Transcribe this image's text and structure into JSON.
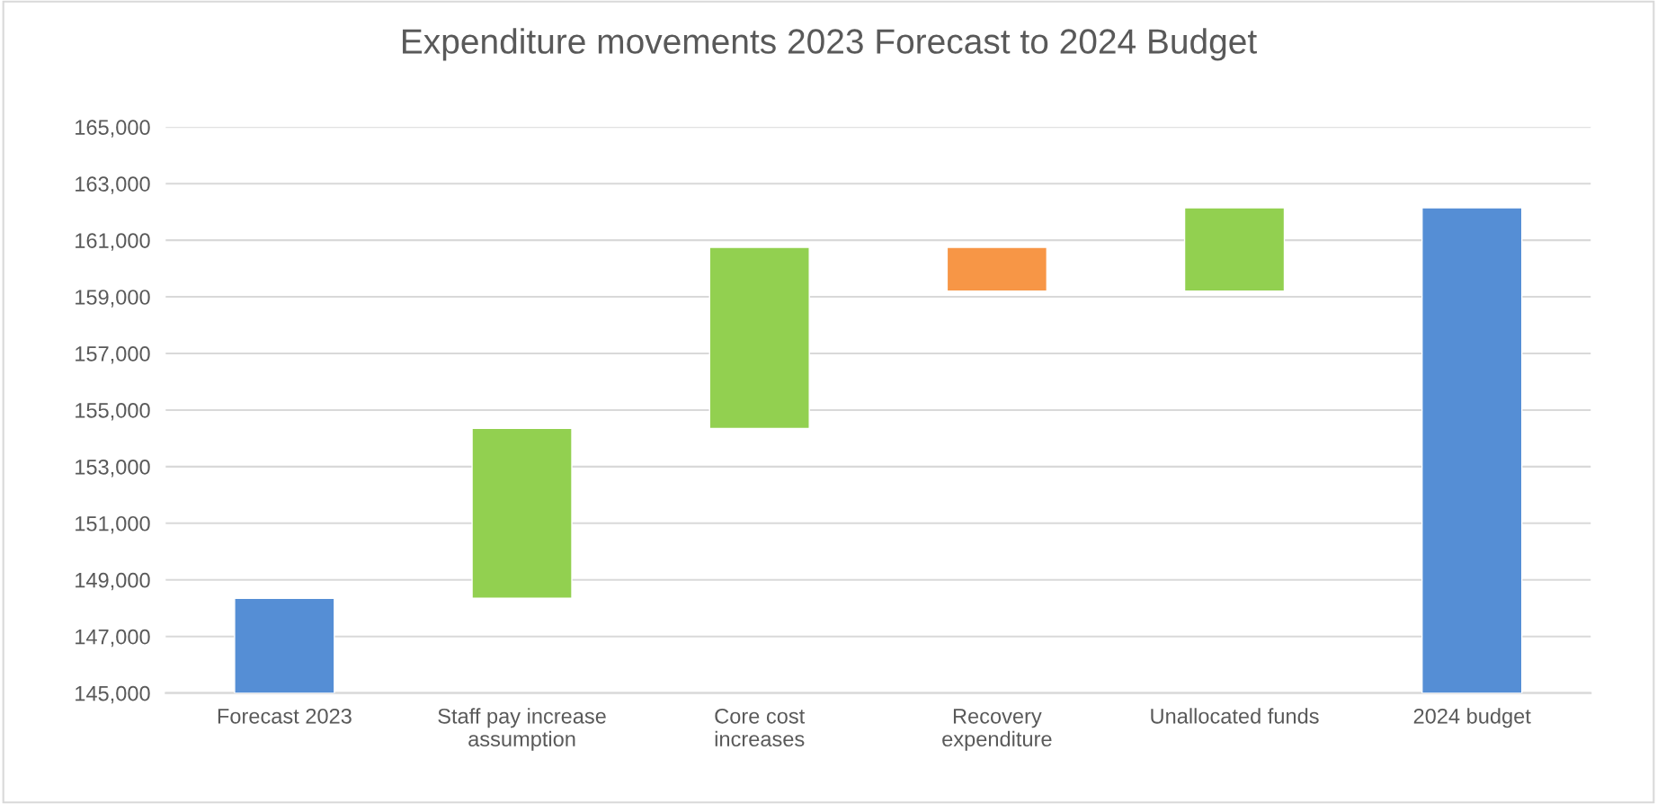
{
  "chart_data": {
    "type": "bar",
    "title": "Expenditure movements 2023 Forecast to 2024 Budget",
    "categories": [
      "Forecast 2023",
      "Staff pay increase\nassumption",
      "Core cost\nincreases",
      "Recovery\nexpenditure",
      "Unallocated funds",
      "2024 budget"
    ],
    "base": [
      145000,
      148350,
      154350,
      159200,
      159200,
      145000
    ],
    "values": [
      3350,
      6000,
      6400,
      1550,
      2950,
      17150
    ],
    "colors": [
      "#558ed5",
      "#92d050",
      "#92d050",
      "#f79646",
      "#92d050",
      "#558ed5"
    ],
    "ylim": [
      145000,
      165000
    ],
    "yticks": [
      {
        "value": 145000,
        "label": "145,000"
      },
      {
        "value": 147000,
        "label": "147,000"
      },
      {
        "value": 149000,
        "label": "149,000"
      },
      {
        "value": 151000,
        "label": "151,000"
      },
      {
        "value": 153000,
        "label": "153,000"
      },
      {
        "value": 155000,
        "label": "155,000"
      },
      {
        "value": 157000,
        "label": "157,000"
      },
      {
        "value": 159000,
        "label": "159,000"
      },
      {
        "value": 161000,
        "label": "161,000"
      },
      {
        "value": 163000,
        "label": "163,000"
      },
      {
        "value": 165000,
        "label": "165,000"
      }
    ],
    "grid": "y",
    "legend": false
  }
}
